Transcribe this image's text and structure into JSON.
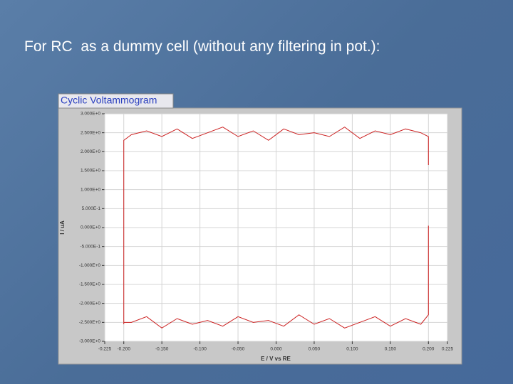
{
  "heading": "For RC  as a dummy cell (without any filtering in pot.):",
  "chart_data": {
    "type": "line",
    "title": "Cyclic Voltammogram",
    "x_label": "E / V vs RE",
    "y_label": "I / uA",
    "xlim": [
      -0.225,
      0.225
    ],
    "ylim": [
      -3,
      3
    ],
    "grid": true,
    "xticks": [
      {
        "value": -0.225,
        "label": "-0.225"
      },
      {
        "value": -0.2,
        "label": "-0.200"
      },
      {
        "value": -0.15,
        "label": "-0.150"
      },
      {
        "value": -0.1,
        "label": "-0.100"
      },
      {
        "value": -0.05,
        "label": "-0.050"
      },
      {
        "value": 0,
        "label": "0.000"
      },
      {
        "value": 0.05,
        "label": "0.050"
      },
      {
        "value": 0.1,
        "label": "0.100"
      },
      {
        "value": 0.15,
        "label": "0.150"
      },
      {
        "value": 0.2,
        "label": "0.200"
      },
      {
        "value": 0.225,
        "label": "0.225"
      }
    ],
    "yticks": [
      {
        "value": 3,
        "label": "3.000E+0"
      },
      {
        "value": 2.5,
        "label": "2.500E+0"
      },
      {
        "value": 2,
        "label": "2.000E+0"
      },
      {
        "value": 1.5,
        "label": "1.500E+0"
      },
      {
        "value": 1,
        "label": "1.000E+0"
      },
      {
        "value": 0.5,
        "label": "5.000E-1"
      },
      {
        "value": 0,
        "label": "0.000E+0"
      },
      {
        "value": -0.5,
        "label": "-5.000E-1"
      },
      {
        "value": -1,
        "label": "-1.000E+0"
      },
      {
        "value": -1.5,
        "label": "-1.500E+0"
      },
      {
        "value": -2,
        "label": "-2.000E+0"
      },
      {
        "value": -2.5,
        "label": "-2.500E+0"
      },
      {
        "value": -3,
        "label": "-3.000E+0"
      }
    ],
    "x": [
      -0.2,
      -0.2,
      -0.19,
      -0.17,
      -0.15,
      -0.13,
      -0.11,
      -0.09,
      -0.07,
      -0.05,
      -0.03,
      -0.01,
      0.01,
      0.03,
      0.05,
      0.07,
      0.09,
      0.11,
      0.13,
      0.15,
      0.17,
      0.19,
      0.2,
      0.2,
      0.2,
      0.2,
      0.2,
      0.19,
      0.17,
      0.15,
      0.13,
      0.11,
      0.09,
      0.07,
      0.05,
      0.03,
      0.01,
      -0.01,
      -0.03,
      -0.05,
      -0.07,
      -0.09,
      -0.11,
      -0.13,
      -0.15,
      -0.17,
      -0.19,
      -0.2
    ],
    "series": [
      {
        "color": "#cc2020",
        "values": [
          -2.55,
          2.3,
          2.45,
          2.55,
          2.4,
          2.6,
          2.35,
          2.5,
          2.65,
          2.4,
          2.55,
          2.3,
          2.6,
          2.45,
          2.5,
          2.4,
          2.65,
          2.35,
          2.55,
          2.45,
          2.6,
          2.5,
          2.4,
          1.65,
          null,
          0.05,
          -2.3,
          -2.55,
          -2.4,
          -2.6,
          -2.35,
          -2.5,
          -2.65,
          -2.4,
          -2.55,
          -2.3,
          -2.6,
          -2.45,
          -2.5,
          -2.35,
          -2.6,
          -2.45,
          -2.55,
          -2.4,
          -2.65,
          -2.35,
          -2.5,
          -2.5
        ]
      }
    ]
  }
}
